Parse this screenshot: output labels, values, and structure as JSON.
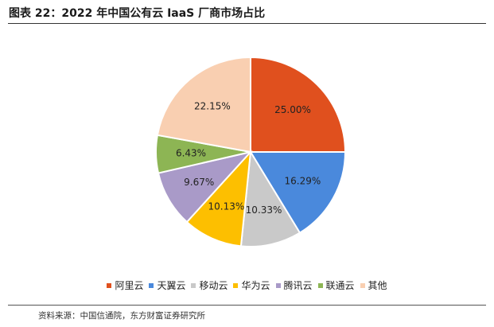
{
  "header": {
    "title": "图表 22：2022 年中国公有云 IaaS 厂商市场占比"
  },
  "footer": {
    "source": "资料来源：中国信通院，东方财富证券研究所"
  },
  "chart_data": {
    "type": "pie",
    "title": "图表 22：2022 年中国公有云 IaaS 厂商市场占比",
    "legend_position": "bottom",
    "slices": [
      {
        "name": "阿里云",
        "value": 25.0,
        "label": "25.00%",
        "color": "#e0501e"
      },
      {
        "name": "天翼云",
        "value": 16.29,
        "label": "16.29%",
        "color": "#4a89dc"
      },
      {
        "name": "移动云",
        "value": 10.33,
        "label": "10.33%",
        "color": "#c9c9c9"
      },
      {
        "name": "华为云",
        "value": 10.13,
        "label": "10.13%",
        "color": "#fdbf00"
      },
      {
        "name": "腾讯云",
        "value": 9.67,
        "label": "9.67%",
        "color": "#a99ac8"
      },
      {
        "name": "联通云",
        "value": 6.43,
        "label": "6.43%",
        "color": "#8db554"
      },
      {
        "name": "其他",
        "value": 22.15,
        "label": "22.15%",
        "color": "#f9cfb1"
      }
    ]
  }
}
